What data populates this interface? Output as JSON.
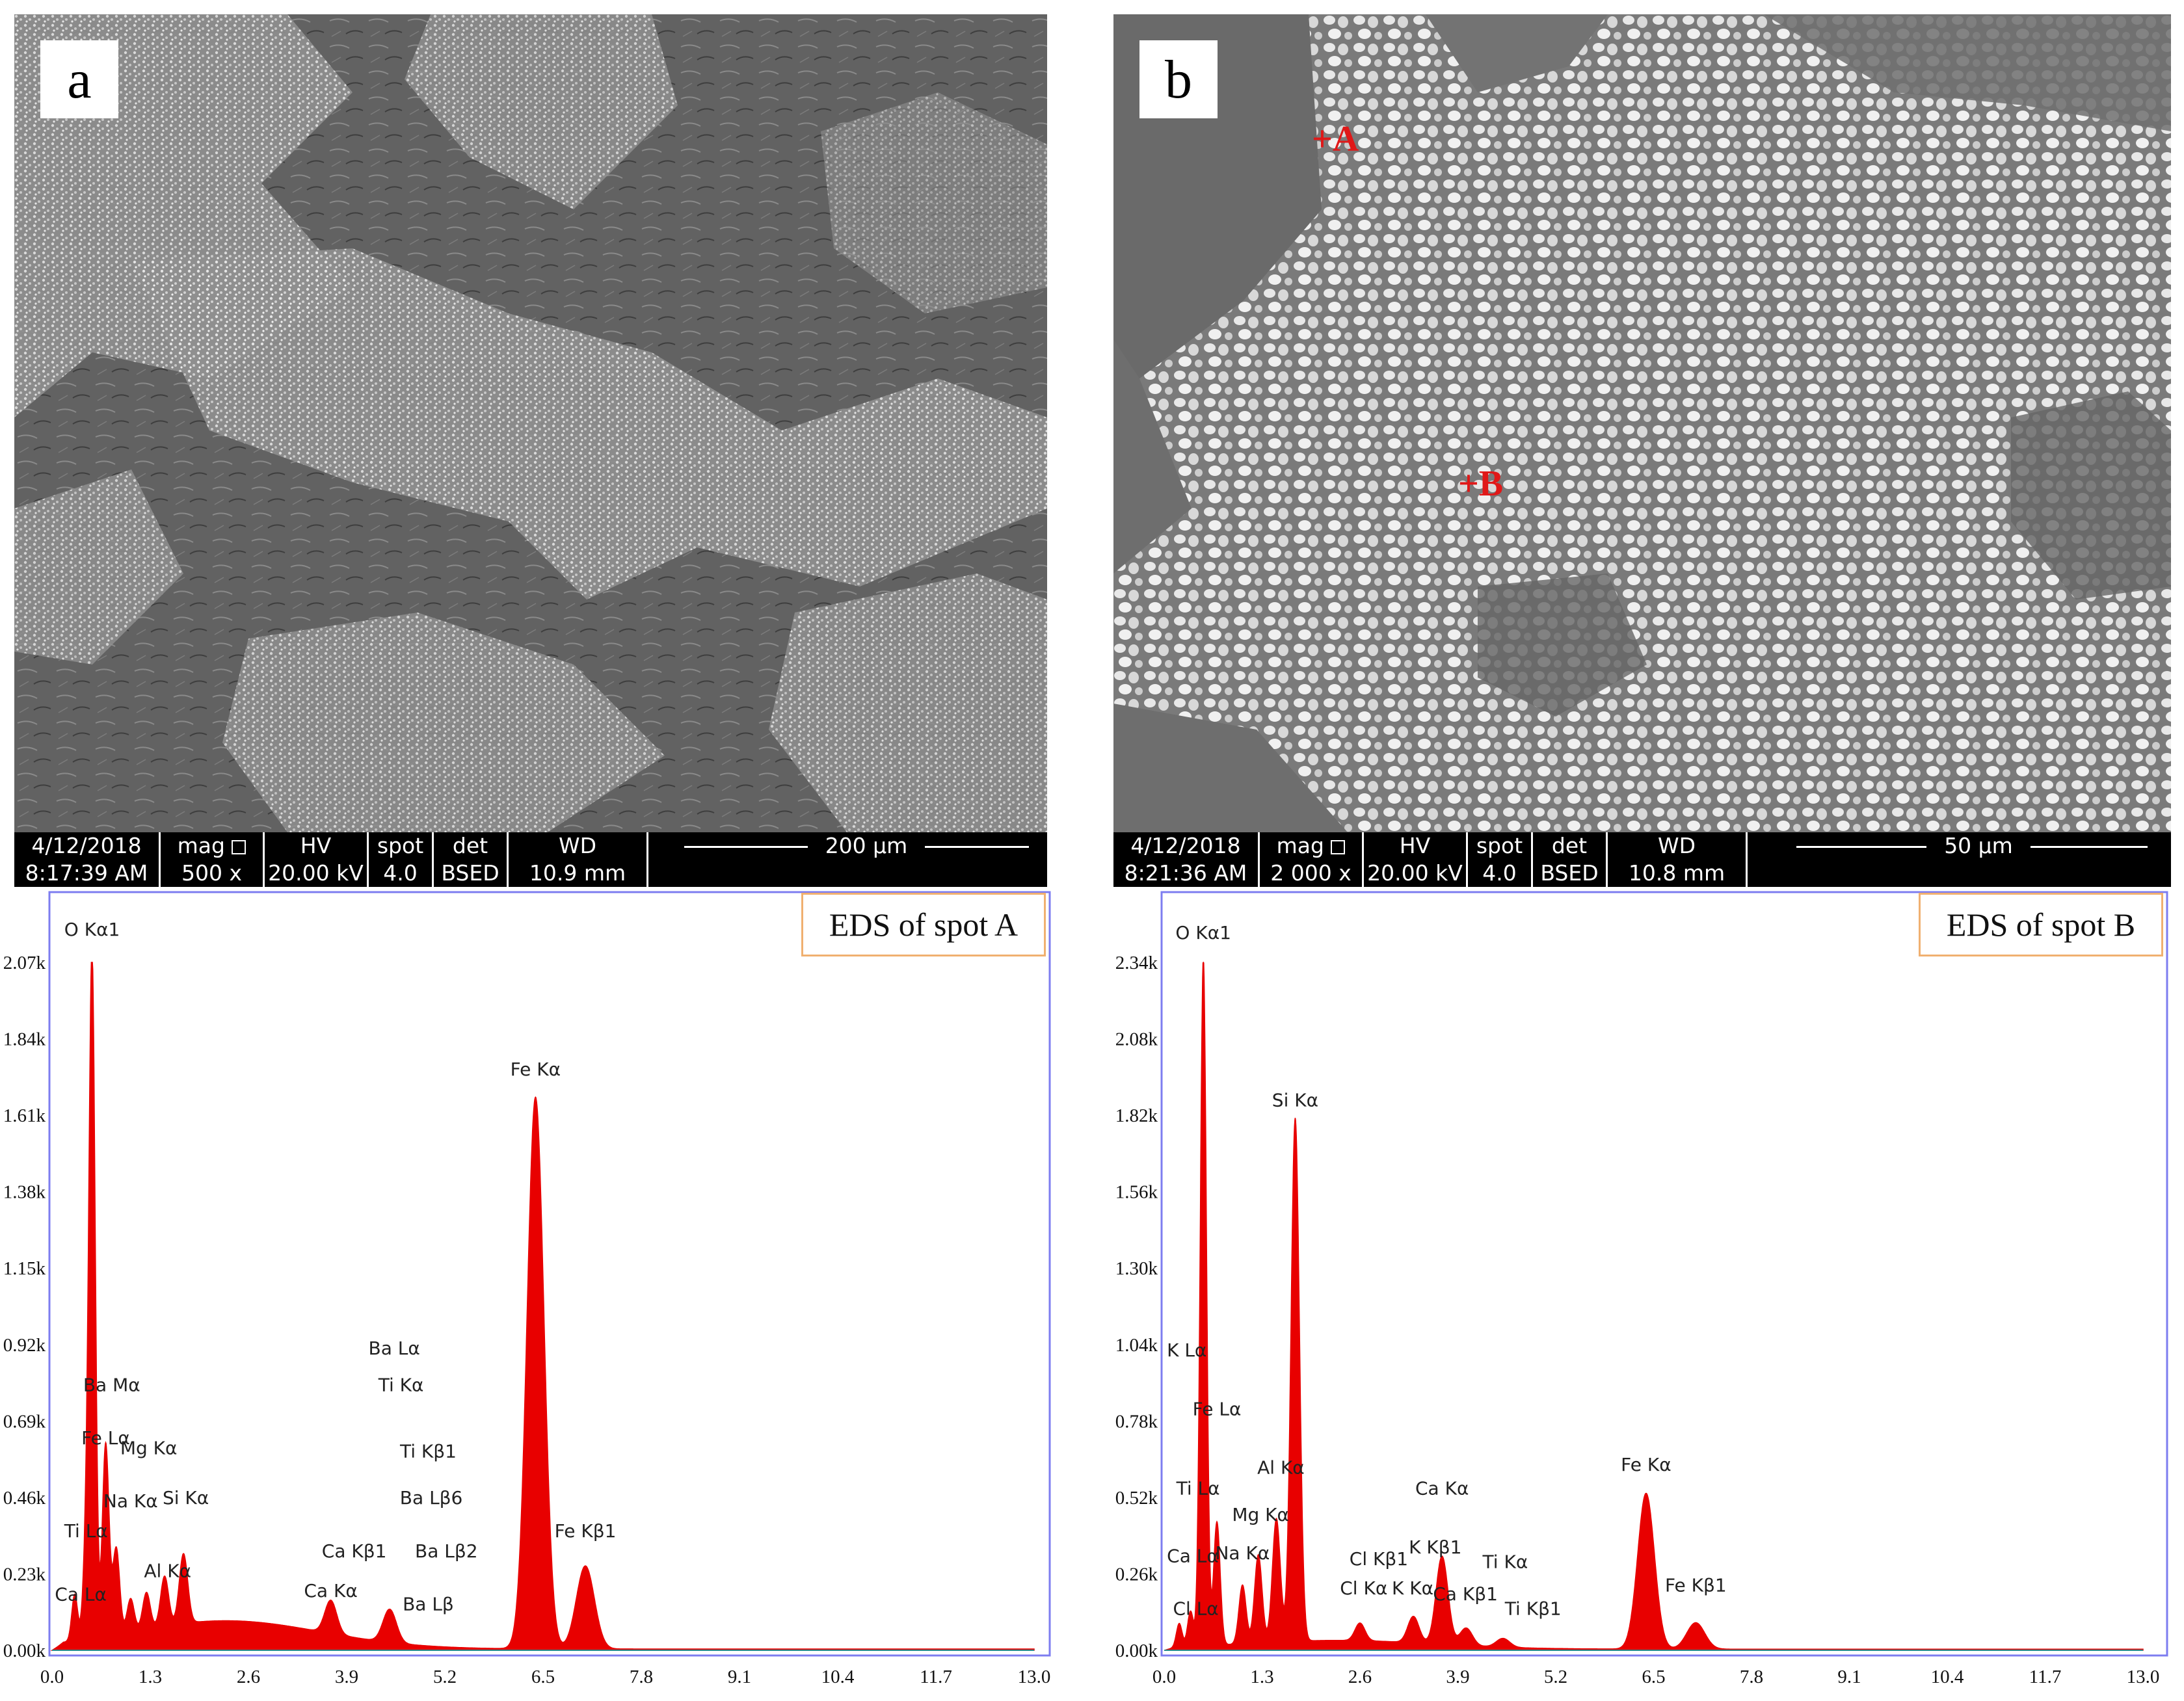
{
  "panels": [
    {
      "id": "a",
      "label": "a",
      "infobar": {
        "date": "4/12/2018",
        "time": "8:17:39 AM",
        "mag_label": "mag",
        "mag": "500 x",
        "hv_label": "HV",
        "hv": "20.00 kV",
        "spot_label": "spot",
        "spot": "4.0",
        "det_label": "det",
        "det": "BSED",
        "wd_label": "WD",
        "wd": "10.9 mm",
        "scale": "200 µm"
      },
      "markers": []
    },
    {
      "id": "b",
      "label": "b",
      "infobar": {
        "date": "4/12/2018",
        "time": "8:21:36 AM",
        "mag_label": "mag",
        "mag": "2 000 x",
        "hv_label": "HV",
        "hv": "20.00 kV",
        "spot_label": "spot",
        "spot": "4.0",
        "det_label": "det",
        "det": "BSED",
        "wd_label": "WD",
        "wd": "10.8 mm",
        "scale": "50 µm"
      },
      "markers": [
        "+A",
        "+B"
      ]
    }
  ],
  "chart_data": [
    {
      "type": "line",
      "title": "EDS of spot A",
      "xlabel": "",
      "ylabel": "",
      "xlim": [
        0,
        13.0
      ],
      "ylim": [
        0,
        2.07
      ],
      "x_ticks": [
        "0.0",
        "1.3",
        "2.6",
        "3.9",
        "5.2",
        "6.5",
        "7.8",
        "9.1",
        "10.4",
        "11.7",
        "13.0"
      ],
      "y_ticks": [
        "0.00k",
        "0.23k",
        "0.46k",
        "0.69k",
        "0.92k",
        "1.15k",
        "1.38k",
        "1.61k",
        "1.84k",
        "2.07k"
      ],
      "peaks": [
        {
          "x": 0.3,
          "y": 0.14
        },
        {
          "x": 0.45,
          "y": 0.25
        },
        {
          "x": 0.53,
          "y": 2.05
        },
        {
          "x": 0.71,
          "y": 0.58
        },
        {
          "x": 0.85,
          "y": 0.26
        },
        {
          "x": 1.04,
          "y": 0.1
        },
        {
          "x": 1.25,
          "y": 0.11
        },
        {
          "x": 1.49,
          "y": 0.15
        },
        {
          "x": 1.74,
          "y": 0.21
        },
        {
          "x": 3.69,
          "y": 0.1
        },
        {
          "x": 4.47,
          "y": 0.1
        },
        {
          "x": 6.4,
          "y": 1.66
        },
        {
          "x": 7.06,
          "y": 0.25
        }
      ],
      "peak_labels": [
        {
          "text": "O Kα1",
          "x": 0.53,
          "y": 2.15
        },
        {
          "text": "Ba Mα",
          "x": 0.79,
          "y": 0.78
        },
        {
          "text": "Fe Lα",
          "x": 0.71,
          "y": 0.62
        },
        {
          "text": "Mg Kα",
          "x": 1.28,
          "y": 0.59
        },
        {
          "text": "Na Kα",
          "x": 1.04,
          "y": 0.43
        },
        {
          "text": "Si Kα",
          "x": 1.77,
          "y": 0.44
        },
        {
          "text": "Ti Lα",
          "x": 0.45,
          "y": 0.34
        },
        {
          "text": "Al Kα",
          "x": 1.53,
          "y": 0.22
        },
        {
          "text": "Ca Lα",
          "x": 0.38,
          "y": 0.15
        },
        {
          "text": "Ca Kβ1",
          "x": 4.0,
          "y": 0.28
        },
        {
          "text": "Ca Kα",
          "x": 3.69,
          "y": 0.16
        },
        {
          "text": "Ba Lα",
          "x": 4.53,
          "y": 0.89
        },
        {
          "text": "Ti Kα",
          "x": 4.62,
          "y": 0.78
        },
        {
          "text": "Ti Kβ1",
          "x": 4.98,
          "y": 0.58
        },
        {
          "text": "Ba Lβ6",
          "x": 5.02,
          "y": 0.44
        },
        {
          "text": "Ba Lβ2",
          "x": 5.22,
          "y": 0.28
        },
        {
          "text": "Ba Lβ",
          "x": 4.98,
          "y": 0.12
        },
        {
          "text": "Fe Kα",
          "x": 6.4,
          "y": 1.73
        },
        {
          "text": "Fe Kβ1",
          "x": 7.06,
          "y": 0.34
        }
      ],
      "color": "#e80000"
    },
    {
      "type": "line",
      "title": "EDS of spot B",
      "xlabel": "",
      "ylabel": "",
      "xlim": [
        0,
        13.0
      ],
      "ylim": [
        0,
        2.34
      ],
      "x_ticks": [
        "0.0",
        "1.3",
        "2.6",
        "3.9",
        "5.2",
        "6.5",
        "7.8",
        "9.1",
        "10.4",
        "11.7",
        "13.0"
      ],
      "y_ticks": [
        "0.00k",
        "0.26k",
        "0.52k",
        "0.78k",
        "1.04k",
        "1.30k",
        "1.56k",
        "1.82k",
        "2.08k",
        "2.34k"
      ],
      "peaks": [
        {
          "x": 0.2,
          "y": 0.08
        },
        {
          "x": 0.35,
          "y": 0.12
        },
        {
          "x": 0.52,
          "y": 2.34
        },
        {
          "x": 0.7,
          "y": 0.42
        },
        {
          "x": 1.04,
          "y": 0.2
        },
        {
          "x": 1.25,
          "y": 0.3
        },
        {
          "x": 1.49,
          "y": 0.42
        },
        {
          "x": 1.74,
          "y": 1.78
        },
        {
          "x": 2.6,
          "y": 0.06
        },
        {
          "x": 3.31,
          "y": 0.09
        },
        {
          "x": 3.69,
          "y": 0.3
        },
        {
          "x": 4.01,
          "y": 0.06
        },
        {
          "x": 4.5,
          "y": 0.03
        },
        {
          "x": 6.4,
          "y": 0.53
        },
        {
          "x": 7.06,
          "y": 0.09
        }
      ],
      "peak_labels": [
        {
          "text": "O Kα1",
          "x": 0.52,
          "y": 2.42
        },
        {
          "text": "Si Kα",
          "x": 1.74,
          "y": 1.85
        },
        {
          "text": "K Lα",
          "x": 0.3,
          "y": 1.0
        },
        {
          "text": "Fe Lα",
          "x": 0.7,
          "y": 0.8
        },
        {
          "text": "Al Kα",
          "x": 1.55,
          "y": 0.6
        },
        {
          "text": "Ti Lα",
          "x": 0.45,
          "y": 0.53
        },
        {
          "text": "Mg Kα",
          "x": 1.28,
          "y": 0.44
        },
        {
          "text": "Na Kα",
          "x": 1.04,
          "y": 0.31
        },
        {
          "text": "Ca Lα",
          "x": 0.38,
          "y": 0.3
        },
        {
          "text": "Cl Lα",
          "x": 0.42,
          "y": 0.12
        },
        {
          "text": "Cl Kβ1",
          "x": 2.85,
          "y": 0.29
        },
        {
          "text": "K Kβ1",
          "x": 3.6,
          "y": 0.33
        },
        {
          "text": "Ca Kα",
          "x": 3.69,
          "y": 0.53
        },
        {
          "text": "Cl Kα",
          "x": 2.65,
          "y": 0.19
        },
        {
          "text": "K Kα",
          "x": 3.3,
          "y": 0.19
        },
        {
          "text": "Ca Kβ1",
          "x": 4.0,
          "y": 0.17
        },
        {
          "text": "Ti Kα",
          "x": 4.53,
          "y": 0.28
        },
        {
          "text": "Ti Kβ1",
          "x": 4.9,
          "y": 0.12
        },
        {
          "text": "Fe Kα",
          "x": 6.4,
          "y": 0.61
        },
        {
          "text": "Fe Kβ1",
          "x": 7.06,
          "y": 0.2
        }
      ],
      "color": "#e80000"
    }
  ]
}
